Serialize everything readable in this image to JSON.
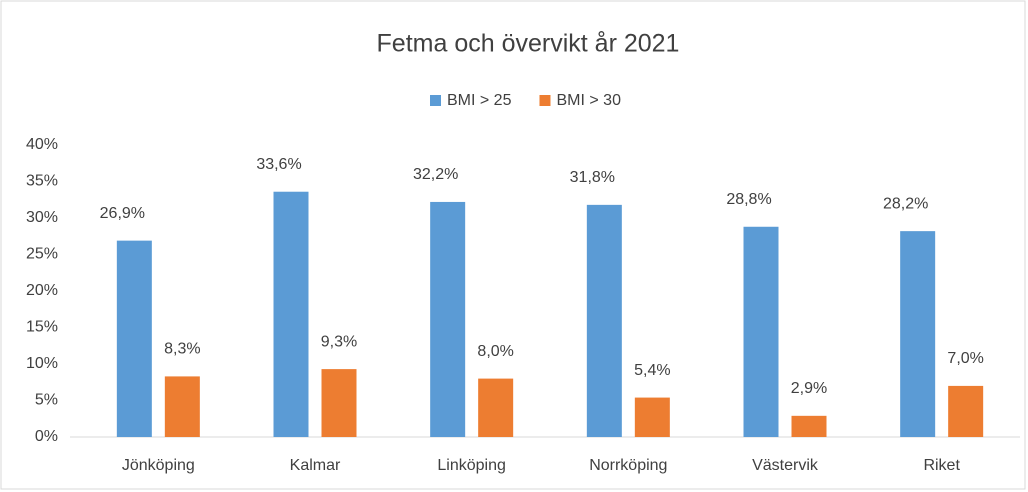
{
  "chart_data": {
    "type": "bar",
    "title": "Fetma och övervikt år 2021",
    "categories": [
      "Jönköping",
      "Kalmar",
      "Linköping",
      "Norrköping",
      "Västervik",
      "Riket"
    ],
    "series": [
      {
        "name": "BMI > 25",
        "color": "#5b9bd5",
        "values": [
          26.9,
          33.6,
          32.2,
          31.8,
          28.8,
          28.2
        ],
        "value_labels": [
          "26,9%",
          "33,6%",
          "32,2%",
          "31,8%",
          "28,8%",
          "28,2%"
        ]
      },
      {
        "name": "BMI > 30",
        "color": "#ed7d31",
        "values": [
          8.3,
          9.3,
          8.0,
          5.4,
          2.9,
          7.0
        ],
        "value_labels": [
          "8,3%",
          "9,3%",
          "8,0%",
          "5,4%",
          "2,9%",
          "7,0%"
        ]
      }
    ],
    "ylim": [
      0,
      40
    ],
    "yticks": [
      {
        "value": 0,
        "label": "0%"
      },
      {
        "value": 5,
        "label": "5%"
      },
      {
        "value": 10,
        "label": "10%"
      },
      {
        "value": 15,
        "label": "15%"
      },
      {
        "value": 20,
        "label": "20%"
      },
      {
        "value": 25,
        "label": "25%"
      },
      {
        "value": 30,
        "label": "30%"
      },
      {
        "value": 35,
        "label": "35%"
      },
      {
        "value": 40,
        "label": "40%"
      }
    ],
    "grid": false,
    "legend": "top"
  }
}
